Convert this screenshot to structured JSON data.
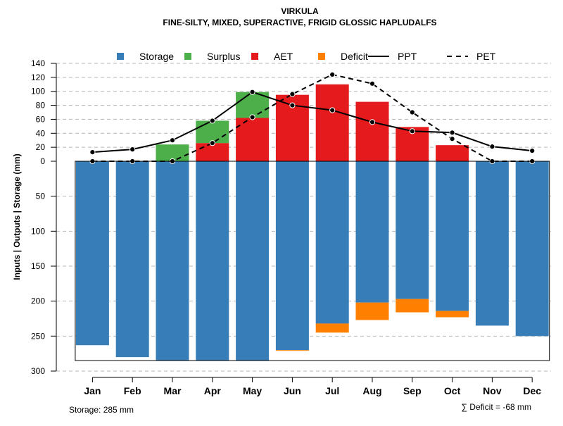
{
  "chart_data": {
    "type": "bar",
    "title": "VIRKULA",
    "subtitle": "FINE-SILTY, MIXED, SUPERACTIVE, FRIGID GLOSSIC HAPLUDALFS",
    "ylabel": "Inputs | Outputs | Storage     (mm)",
    "categories": [
      "Jan",
      "Feb",
      "Mar",
      "Apr",
      "May",
      "Jun",
      "Jul",
      "Aug",
      "Sep",
      "Oct",
      "Nov",
      "Dec"
    ],
    "upper_ticks": [
      "0",
      "20",
      "40",
      "60",
      "80",
      "100",
      "120",
      "140"
    ],
    "upper_range": [
      0,
      140
    ],
    "lower_ticks": [
      "50",
      "100",
      "150",
      "200",
      "250",
      "300"
    ],
    "lower_range": [
      0,
      300
    ],
    "colors": {
      "storage": "#377eb8",
      "surplus": "#4daf4a",
      "aet": "#e41a1c",
      "deficit": "#ff7f00",
      "line": "#000000"
    },
    "legend": [
      {
        "key": "storage",
        "label": "Storage",
        "kind": "square"
      },
      {
        "key": "surplus",
        "label": "Surplus",
        "kind": "square"
      },
      {
        "key": "aet",
        "label": "AET",
        "kind": "square"
      },
      {
        "key": "deficit",
        "label": "Deficit",
        "kind": "square"
      },
      {
        "key": "ppt",
        "label": "PPT",
        "kind": "solid-line"
      },
      {
        "key": "pet",
        "label": "PET",
        "kind": "dashed-line"
      }
    ],
    "series": [
      {
        "name": "AET",
        "values": [
          0,
          0,
          0,
          26,
          62,
          95,
          110,
          85,
          49,
          23,
          0,
          0
        ]
      },
      {
        "name": "Surplus",
        "values": [
          0,
          0,
          24,
          32,
          37,
          0,
          0,
          0,
          0,
          0,
          0,
          0
        ]
      },
      {
        "name": "Storage",
        "values": [
          263,
          280,
          285,
          285,
          285,
          270,
          232,
          202,
          197,
          214,
          235,
          250
        ]
      },
      {
        "name": "Deficit",
        "values": [
          0,
          0,
          0,
          0,
          0,
          1,
          13,
          25,
          19,
          9,
          0,
          0
        ]
      },
      {
        "name": "PPT",
        "values": [
          13,
          17,
          30,
          58,
          99,
          80,
          73,
          56,
          43,
          41,
          21,
          15
        ]
      },
      {
        "name": "PET",
        "values": [
          0,
          0,
          0,
          26,
          63,
          96,
          124,
          111,
          70,
          32,
          0,
          0
        ]
      }
    ],
    "storage_capacity_text": "Storage: 285 mm",
    "storage_capacity": 285,
    "deficit_total_text": "∑ Deficit = -68 mm"
  }
}
